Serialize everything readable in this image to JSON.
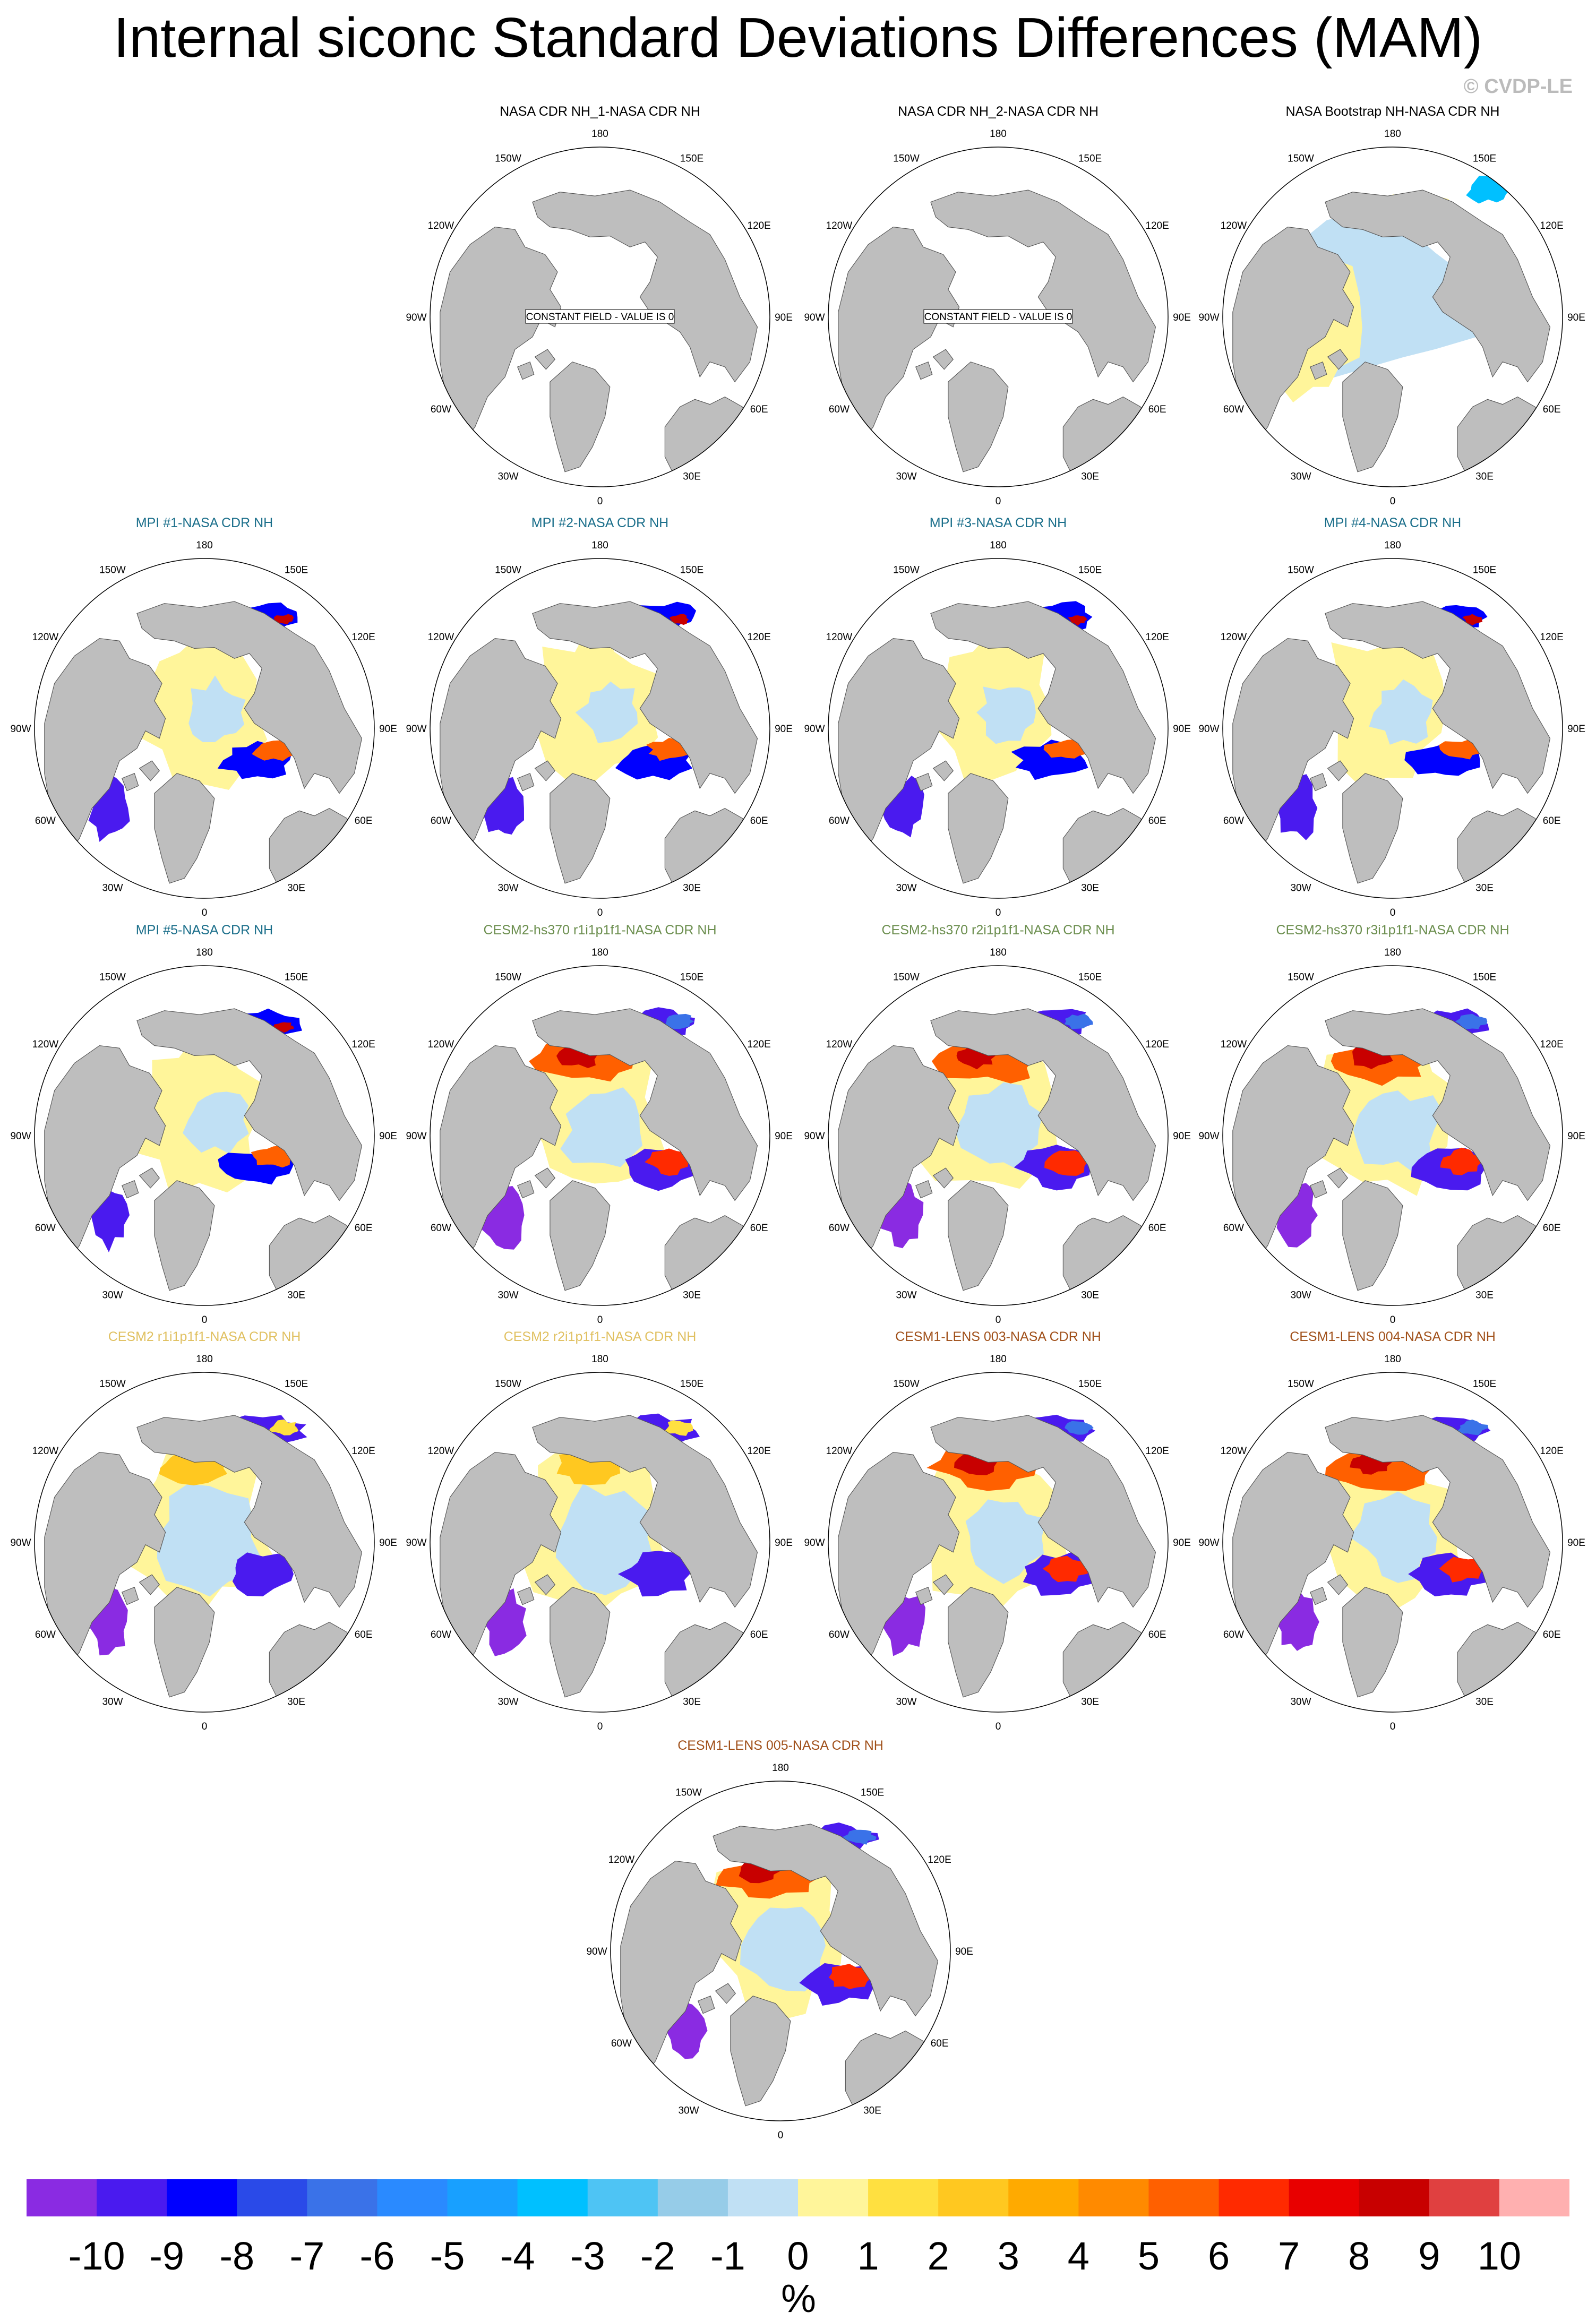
{
  "title": "Internal siconc Standard Deviations Differences (MAM)",
  "credit": "© CVDP-LE",
  "longitude_labels": [
    "180",
    "150E",
    "120E",
    "90E",
    "60E",
    "30E",
    "0",
    "30W",
    "60W",
    "90W",
    "120W",
    "150W"
  ],
  "colors": {
    "land": "#bebebe",
    "ocean": "#ffffff",
    "nasa_title": "#000000",
    "mpi_title": "#1a6e8a",
    "cesm2_hs370_title": "#6b8e4e",
    "cesm2_title": "#e0c060",
    "cesm1_title": "#a0501a"
  },
  "panels": [
    {
      "title": "NASA CDR NH_1-NASA CDR NH",
      "title_color": "#000000",
      "pattern": "constant",
      "note": "CONSTANT FIELD - VALUE IS 0"
    },
    {
      "title": "NASA CDR NH_2-NASA CDR NH",
      "title_color": "#000000",
      "pattern": "constant",
      "note": "CONSTANT FIELD - VALUE IS 0"
    },
    {
      "title": "NASA Bootstrap NH-NASA CDR NH",
      "title_color": "#000000",
      "pattern": "bootstrap"
    },
    {
      "title": "MPI #1-NASA CDR NH",
      "title_color": "#1a6e8a",
      "pattern": "mpi"
    },
    {
      "title": "MPI #2-NASA CDR NH",
      "title_color": "#1a6e8a",
      "pattern": "mpi"
    },
    {
      "title": "MPI #3-NASA CDR NH",
      "title_color": "#1a6e8a",
      "pattern": "mpi"
    },
    {
      "title": "MPI #4-NASA CDR NH",
      "title_color": "#1a6e8a",
      "pattern": "mpi"
    },
    {
      "title": "MPI #5-NASA CDR NH",
      "title_color": "#1a6e8a",
      "pattern": "mpi"
    },
    {
      "title": "CESM2-hs370 r1i1p1f1-NASA CDR NH",
      "title_color": "#6b8e4e",
      "pattern": "warm"
    },
    {
      "title": "CESM2-hs370 r2i1p1f1-NASA CDR NH",
      "title_color": "#6b8e4e",
      "pattern": "warm"
    },
    {
      "title": "CESM2-hs370 r3i1p1f1-NASA CDR NH",
      "title_color": "#6b8e4e",
      "pattern": "warm"
    },
    {
      "title": "CESM2 r1i1p1f1-NASA CDR NH",
      "title_color": "#e0c060",
      "pattern": "cool"
    },
    {
      "title": "CESM2 r2i1p1f1-NASA CDR NH",
      "title_color": "#e0c060",
      "pattern": "cool"
    },
    {
      "title": "CESM1-LENS 003-NASA CDR NH",
      "title_color": "#a0501a",
      "pattern": "warm"
    },
    {
      "title": "CESM1-LENS 004-NASA CDR NH",
      "title_color": "#a0501a",
      "pattern": "warm"
    },
    {
      "title": "CESM1-LENS 005-NASA CDR NH",
      "title_color": "#a0501a",
      "pattern": "warm"
    }
  ],
  "colorbar": {
    "colors": [
      "#8a2be2",
      "#4a1aef",
      "#0000ff",
      "#2a4ae8",
      "#3a72e8",
      "#2a8aff",
      "#18a0ff",
      "#00c0ff",
      "#4ec4f4",
      "#96cce8",
      "#c0e0f4",
      "#fff59a",
      "#ffe040",
      "#ffc820",
      "#ffaa00",
      "#ff8a00",
      "#ff6000",
      "#ff2a00",
      "#e80000",
      "#c80000",
      "#e04040",
      "#ffb0b0"
    ],
    "labels": [
      "-10",
      "-9",
      "-8",
      "-7",
      "-6",
      "-5",
      "-4",
      "-3",
      "-2",
      "-1",
      "0",
      "1",
      "2",
      "3",
      "4",
      "5",
      "6",
      "7",
      "8",
      "9",
      "10"
    ],
    "units": "%"
  }
}
